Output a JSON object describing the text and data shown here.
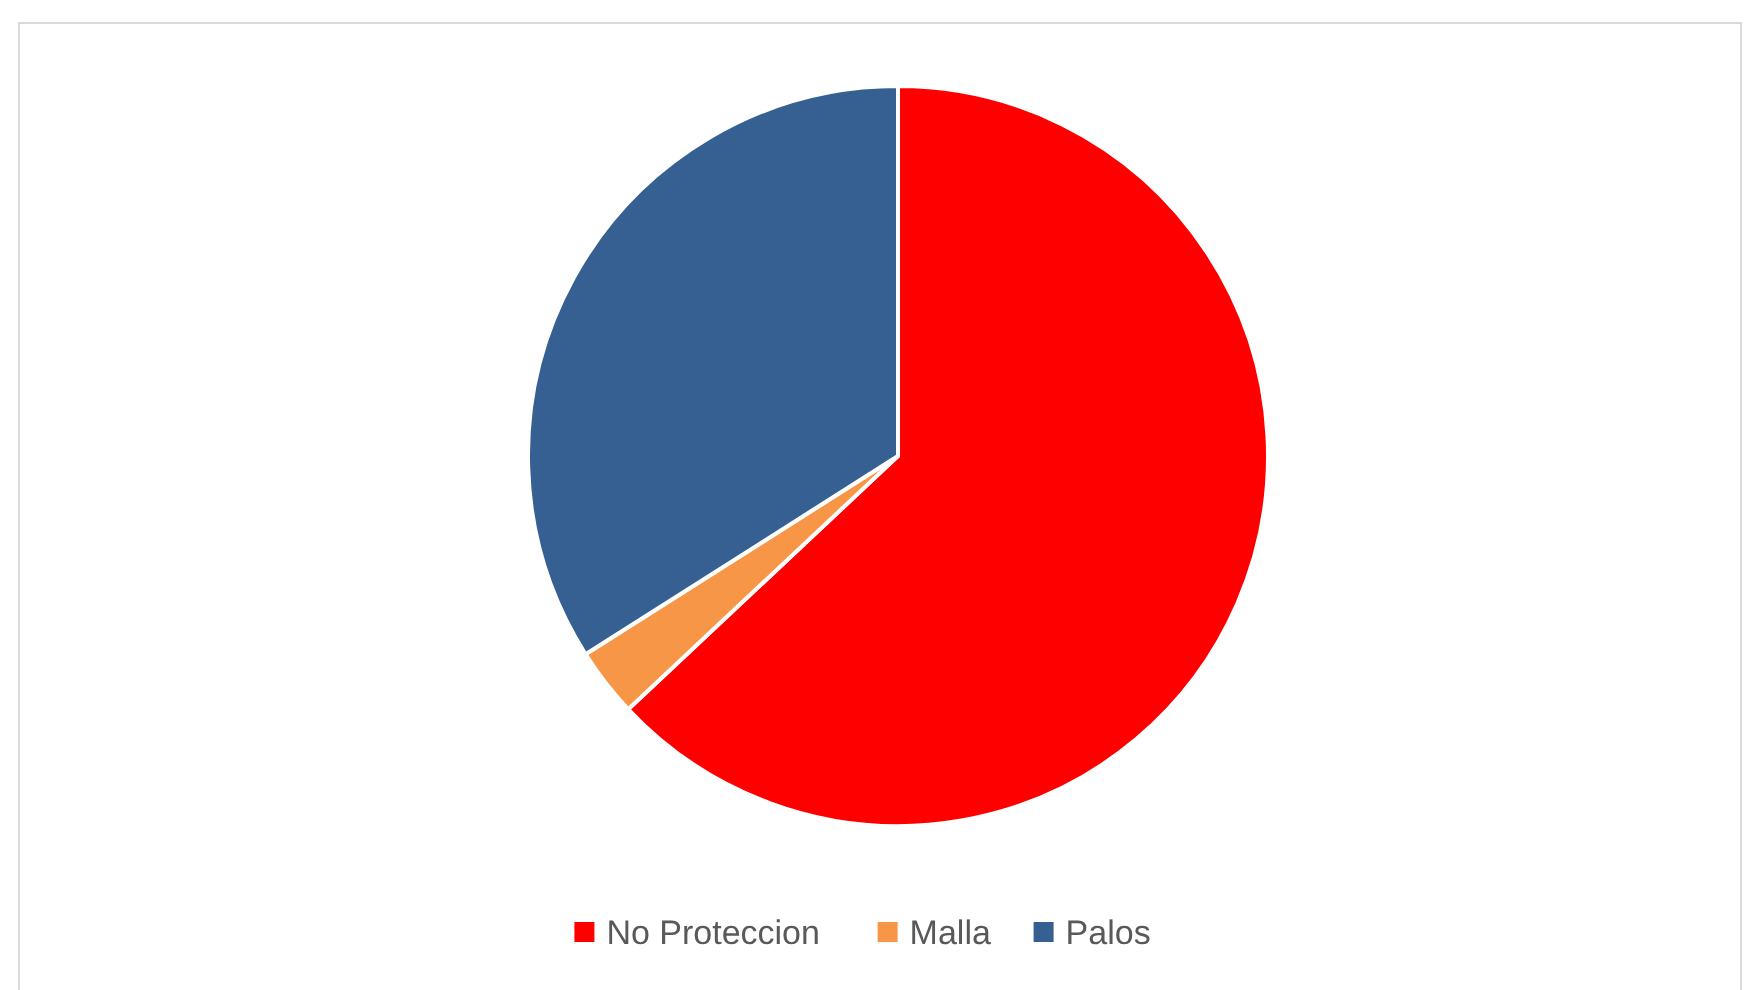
{
  "chart_data": {
    "type": "pie",
    "categories": [
      "No Proteccion",
      "Malla",
      "Palos"
    ],
    "values": [
      63,
      3,
      34
    ],
    "colors": [
      "#ff0000",
      "#f79646",
      "#376092"
    ],
    "legend": "bottom"
  }
}
